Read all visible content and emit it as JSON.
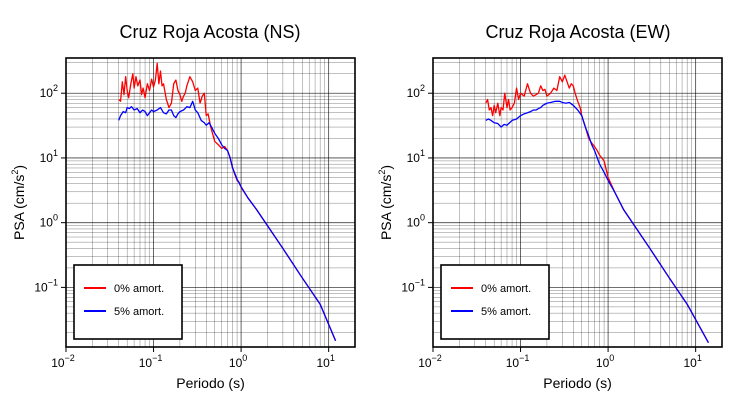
{
  "chart_data": [
    {
      "type": "line",
      "title": "Cruz Roja Acosta (NS)",
      "xlabel": "Periodo (s)",
      "ylabel": "PSA (cm/s",
      "ylabel_sup": "2",
      "ylabel_close": ")",
      "x_scale": "log",
      "y_scale": "log",
      "xlim": [
        0.01,
        20
      ],
      "ylim": [
        0.012,
        350
      ],
      "grid": true,
      "legend_position": "bottom-left",
      "x_ticks": [
        {
          "value": 0.01,
          "base": "10",
          "exp": "−2"
        },
        {
          "value": 0.1,
          "base": "10",
          "exp": "−1"
        },
        {
          "value": 1,
          "base": "10",
          "exp": "0"
        },
        {
          "value": 10,
          "base": "10",
          "exp": "1"
        }
      ],
      "y_ticks": [
        {
          "value": 0.1,
          "base": "10",
          "exp": "−1"
        },
        {
          "value": 1,
          "base": "10",
          "exp": "0"
        },
        {
          "value": 10,
          "base": "10",
          "exp": "1"
        },
        {
          "value": 100,
          "base": "10",
          "exp": "2"
        }
      ],
      "series": [
        {
          "name": "0% amort.",
          "color": "#ff0000",
          "x": [
            0.04,
            0.042,
            0.044,
            0.046,
            0.048,
            0.05,
            0.052,
            0.055,
            0.058,
            0.06,
            0.063,
            0.066,
            0.07,
            0.073,
            0.076,
            0.08,
            0.085,
            0.09,
            0.095,
            0.1,
            0.105,
            0.11,
            0.115,
            0.12,
            0.125,
            0.13,
            0.14,
            0.15,
            0.16,
            0.17,
            0.18,
            0.19,
            0.2,
            0.21,
            0.22,
            0.23,
            0.24,
            0.26,
            0.28,
            0.3,
            0.32,
            0.34,
            0.36,
            0.38,
            0.4,
            0.42,
            0.45,
            0.48,
            0.5,
            0.55,
            0.6,
            0.65,
            0.7,
            0.75,
            0.8,
            0.85,
            0.9,
            0.95,
            1.0,
            1.2,
            1.5,
            2,
            3,
            5,
            8,
            12
          ],
          "y": [
            80,
            75,
            150,
            95,
            180,
            110,
            85,
            140,
            200,
            120,
            180,
            130,
            160,
            95,
            120,
            85,
            140,
            110,
            165,
            125,
            160,
            290,
            140,
            220,
            130,
            140,
            80,
            60,
            70,
            140,
            160,
            110,
            95,
            75,
            90,
            100,
            130,
            180,
            150,
            110,
            120,
            70,
            90,
            100,
            45,
            48,
            30,
            22,
            18,
            16,
            14,
            15,
            13,
            10,
            7,
            5.5,
            4.5,
            4.2,
            3.5,
            2.4,
            1.6,
            0.9,
            0.4,
            0.14,
            0.055,
            0.015
          ]
        },
        {
          "name": "5% amort.",
          "color": "#0000ff",
          "x": [
            0.04,
            0.042,
            0.045,
            0.048,
            0.05,
            0.053,
            0.056,
            0.06,
            0.065,
            0.07,
            0.075,
            0.08,
            0.085,
            0.09,
            0.095,
            0.1,
            0.11,
            0.12,
            0.13,
            0.14,
            0.15,
            0.16,
            0.17,
            0.18,
            0.19,
            0.2,
            0.22,
            0.24,
            0.26,
            0.28,
            0.3,
            0.32,
            0.35,
            0.38,
            0.4,
            0.43,
            0.46,
            0.5,
            0.55,
            0.6,
            0.65,
            0.7,
            0.75,
            0.8,
            0.9,
            1.0,
            1.2,
            1.5,
            2,
            3,
            5,
            8,
            12
          ],
          "y": [
            38,
            45,
            52,
            50,
            60,
            58,
            62,
            55,
            58,
            50,
            55,
            52,
            45,
            50,
            55,
            52,
            55,
            60,
            50,
            48,
            55,
            55,
            45,
            42,
            48,
            52,
            55,
            62,
            60,
            75,
            55,
            50,
            38,
            35,
            32,
            35,
            30,
            24,
            20,
            16,
            14,
            13,
            10,
            7,
            4.7,
            3.6,
            2.4,
            1.6,
            0.9,
            0.4,
            0.14,
            0.055,
            0.015
          ]
        }
      ]
    },
    {
      "type": "line",
      "title": "Cruz Roja Acosta (EW)",
      "xlabel": "Periodo (s)",
      "ylabel": "PSA (cm/s",
      "ylabel_sup": "2",
      "ylabel_close": ")",
      "x_scale": "log",
      "y_scale": "log",
      "xlim": [
        0.01,
        20
      ],
      "ylim": [
        0.012,
        350
      ],
      "grid": true,
      "legend_position": "bottom-left",
      "x_ticks": [
        {
          "value": 0.01,
          "base": "10",
          "exp": "−2"
        },
        {
          "value": 0.1,
          "base": "10",
          "exp": "−1"
        },
        {
          "value": 1,
          "base": "10",
          "exp": "0"
        },
        {
          "value": 10,
          "base": "10",
          "exp": "1"
        }
      ],
      "y_ticks": [
        {
          "value": 0.1,
          "base": "10",
          "exp": "−1"
        },
        {
          "value": 1,
          "base": "10",
          "exp": "0"
        },
        {
          "value": 10,
          "base": "10",
          "exp": "1"
        },
        {
          "value": 100,
          "base": "10",
          "exp": "2"
        }
      ],
      "series": [
        {
          "name": "0% amort.",
          "color": "#ff0000",
          "x": [
            0.04,
            0.042,
            0.044,
            0.046,
            0.048,
            0.05,
            0.052,
            0.055,
            0.058,
            0.06,
            0.063,
            0.066,
            0.07,
            0.073,
            0.076,
            0.08,
            0.085,
            0.09,
            0.095,
            0.1,
            0.11,
            0.12,
            0.13,
            0.14,
            0.15,
            0.16,
            0.17,
            0.18,
            0.19,
            0.2,
            0.22,
            0.24,
            0.26,
            0.28,
            0.3,
            0.32,
            0.34,
            0.36,
            0.38,
            0.4,
            0.42,
            0.45,
            0.48,
            0.5,
            0.55,
            0.6,
            0.65,
            0.7,
            0.75,
            0.8,
            0.85,
            0.9,
            1.0,
            1.2,
            1.5,
            2,
            3,
            5,
            8,
            14
          ],
          "y": [
            70,
            80,
            55,
            60,
            45,
            65,
            50,
            70,
            45,
            60,
            55,
            100,
            60,
            80,
            55,
            60,
            70,
            120,
            80,
            100,
            90,
            140,
            100,
            90,
            95,
            100,
            130,
            110,
            115,
            90,
            100,
            120,
            110,
            180,
            150,
            190,
            150,
            120,
            140,
            130,
            100,
            75,
            60,
            45,
            30,
            20,
            17,
            15,
            13,
            11,
            10,
            9,
            5,
            2.9,
            1.6,
            0.9,
            0.4,
            0.14,
            0.055,
            0.014
          ]
        },
        {
          "name": "5% amort.",
          "color": "#0000ff",
          "x": [
            0.04,
            0.043,
            0.046,
            0.05,
            0.055,
            0.06,
            0.065,
            0.07,
            0.075,
            0.08,
            0.09,
            0.1,
            0.11,
            0.12,
            0.13,
            0.14,
            0.15,
            0.16,
            0.17,
            0.18,
            0.2,
            0.22,
            0.25,
            0.28,
            0.3,
            0.33,
            0.36,
            0.4,
            0.45,
            0.5,
            0.55,
            0.6,
            0.65,
            0.7,
            0.8,
            0.9,
            1.0,
            1.2,
            1.5,
            2,
            3,
            5,
            8,
            14
          ],
          "y": [
            38,
            40,
            38,
            35,
            34,
            30,
            33,
            32,
            35,
            38,
            40,
            45,
            48,
            50,
            52,
            55,
            55,
            58,
            60,
            65,
            70,
            72,
            75,
            75,
            72,
            70,
            72,
            65,
            55,
            45,
            30,
            22,
            16,
            13,
            8,
            6,
            4.5,
            2.9,
            1.6,
            0.9,
            0.4,
            0.14,
            0.055,
            0.014
          ]
        }
      ]
    }
  ]
}
